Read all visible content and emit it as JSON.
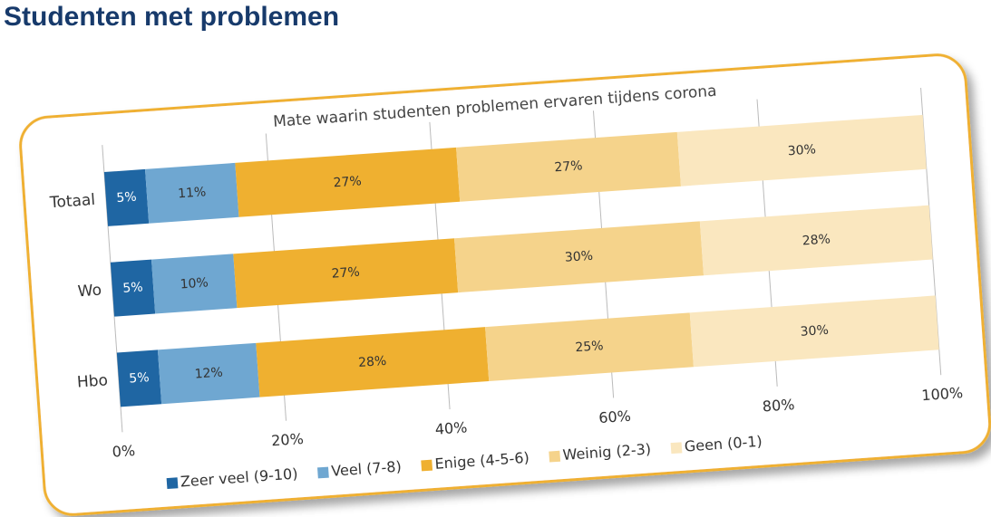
{
  "page_title": "Studenten met problemen",
  "chart_data": {
    "type": "stacked-bar",
    "orientation": "horizontal",
    "title": "Mate waarin studenten problemen ervaren tijdens corona",
    "categories": [
      "Totaal",
      "Wo",
      "Hbo"
    ],
    "series": [
      {
        "name": "Zeer veel (9-10)",
        "color": "#1f66a3",
        "values": [
          5,
          5,
          5
        ],
        "value_labels": [
          "5%",
          "5%",
          "5%"
        ]
      },
      {
        "name": "Veel (7-8)",
        "color": "#6fa7d1",
        "values": [
          11,
          10,
          12
        ],
        "value_labels": [
          "11%",
          "10%",
          "12%"
        ]
      },
      {
        "name": "Enige (4-5-6)",
        "color": "#efb030",
        "values": [
          27,
          27,
          28
        ],
        "value_labels": [
          "27%",
          "27%",
          "28%"
        ]
      },
      {
        "name": "Weinig (2-3)",
        "color": "#f5d38b",
        "values": [
          27,
          30,
          25
        ],
        "value_labels": [
          "27%",
          "30%",
          "25%"
        ]
      },
      {
        "name": "Geen (0-1)",
        "color": "#fae7bf",
        "values": [
          30,
          28,
          30
        ],
        "value_labels": [
          "30%",
          "28%",
          "30%"
        ]
      }
    ],
    "xlim": [
      0,
      100
    ],
    "xticks": [
      {
        "value": 0,
        "label": "0%"
      },
      {
        "value": 20,
        "label": "20%"
      },
      {
        "value": 40,
        "label": "40%"
      },
      {
        "value": 60,
        "label": "60%"
      },
      {
        "value": 80,
        "label": "80%"
      },
      {
        "value": 100,
        "label": "100%"
      }
    ],
    "grid": true,
    "legend": "bottom"
  }
}
